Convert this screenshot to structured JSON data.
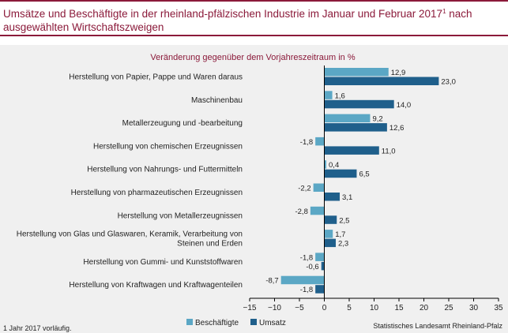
{
  "header": {
    "title_main": "Umsätze und Beschäftigte in der rheinland-pfälzischen Industrie im Januar und Februar 2017",
    "title_sup": "1",
    "title_tail": " nach ausgewählten Wirtschaftszweigen"
  },
  "footer": {
    "footnote": "1 Jahr 2017 vorläufig.",
    "source": "Statistisches Landesamt Rheinland-Pfalz"
  },
  "chart_data": {
    "type": "bar",
    "orientation": "horizontal",
    "subtitle": "Veränderung gegenüber dem Vorjahreszeitraum in %",
    "categories": [
      [
        "Herstellung von Papier, Pappe und Waren daraus"
      ],
      [
        "Maschinenbau"
      ],
      [
        "Metallerzeugung und -bearbeitung"
      ],
      [
        "Herstellung von chemischen Erzeugnissen"
      ],
      [
        "Herstellung von Nahrungs- und Futtermitteln"
      ],
      [
        "Herstellung von pharmazeutischen Erzeugnissen"
      ],
      [
        "Herstellung von Metallerzeugnissen"
      ],
      [
        "Herstellung von Glas und Glaswaren, Keramik, Verarbeitung von",
        "Steinen und Erden"
      ],
      [
        "Herstellung von Gummi- und Kunststoffwaren"
      ],
      [
        "Herstellung von Kraftwagen und Kraftwagenteilen"
      ]
    ],
    "series": [
      {
        "name": "Beschäftigte",
        "color": "#5ba7c5",
        "values": [
          12.9,
          1.6,
          9.2,
          -1.8,
          0.4,
          -2.2,
          -2.8,
          1.7,
          -1.8,
          -8.7
        ],
        "labels": [
          "12,9",
          "1,6",
          "9,2",
          "-1,8",
          "0,4",
          "-2,2",
          "-2,8",
          "1,7",
          "-1,8",
          "-8,7"
        ]
      },
      {
        "name": "Umsatz",
        "color": "#1f5f8b",
        "values": [
          23.0,
          14.0,
          12.6,
          11.0,
          6.5,
          3.1,
          2.5,
          2.3,
          -0.6,
          -1.8
        ],
        "labels": [
          "23,0",
          "14,0",
          "12,6",
          "11,0",
          "6,5",
          "3,1",
          "2,5",
          "2,3",
          "-0,6",
          "-1,8"
        ]
      }
    ],
    "xlim": [
      -15,
      35
    ],
    "xticks": [
      -15,
      -10,
      -5,
      0,
      5,
      10,
      15,
      20,
      25,
      30,
      35
    ],
    "xtick_labels": [
      "−15",
      "−10",
      "−5",
      "0",
      "5",
      "10",
      "15",
      "20",
      "25",
      "30",
      "35"
    ],
    "legend": "bottom-left",
    "grid": false
  }
}
